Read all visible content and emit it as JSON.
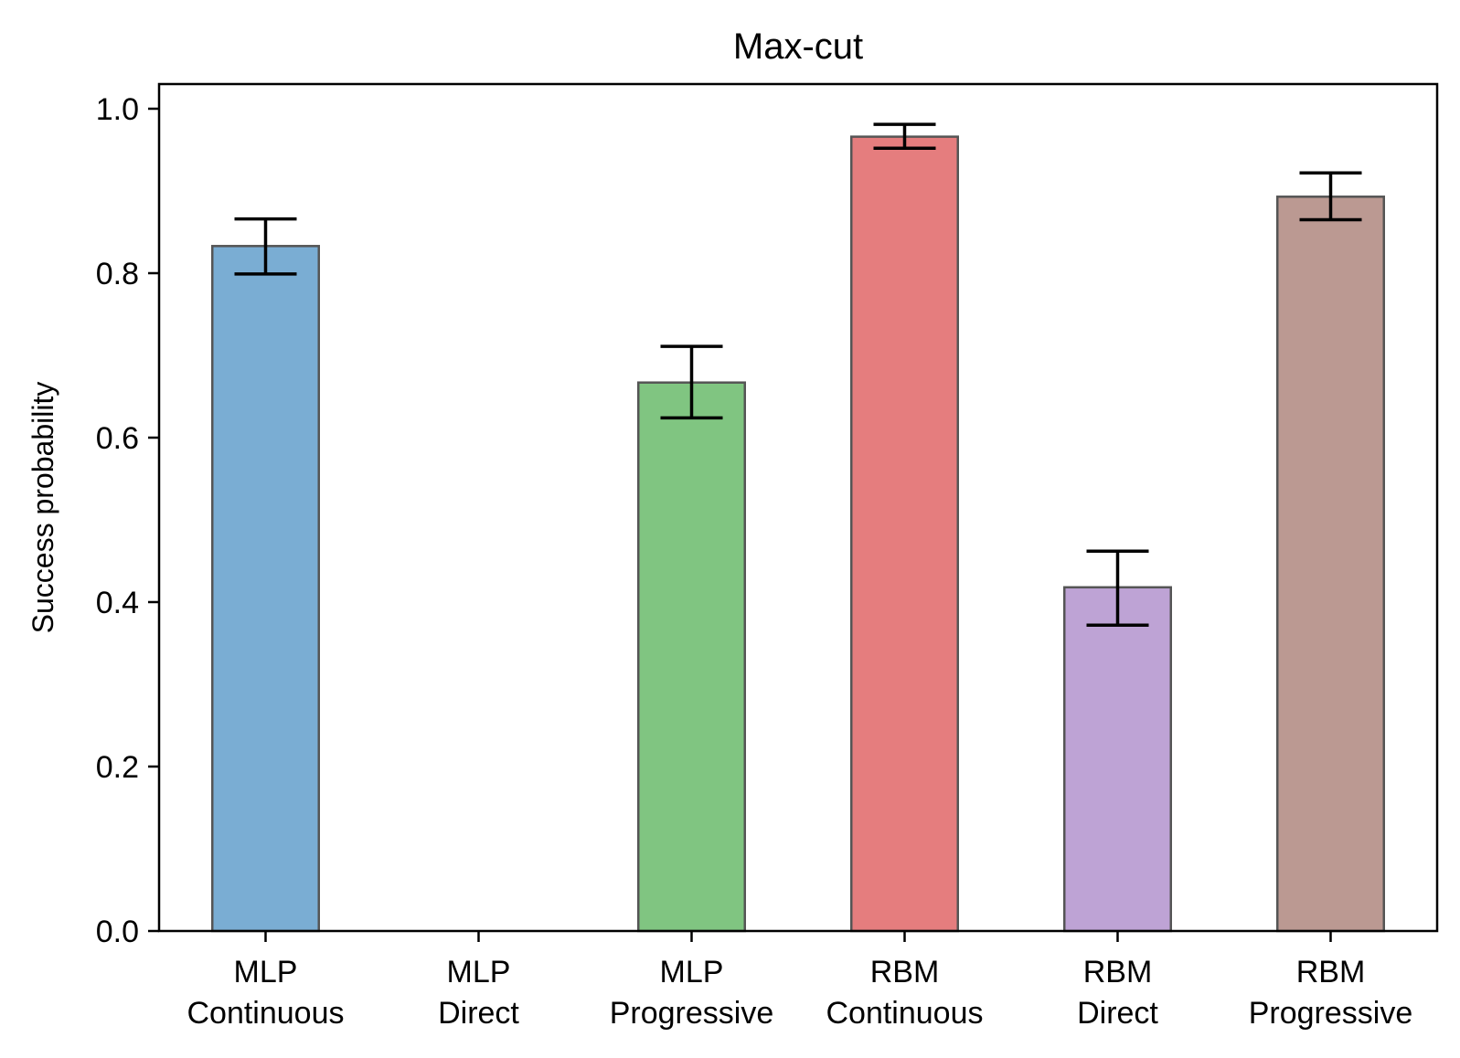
{
  "chart_data": {
    "type": "bar",
    "title": "Max-cut",
    "xlabel": "",
    "ylabel": "Success probability",
    "ylim": [
      0,
      1.03
    ],
    "yticks": [
      0.0,
      0.2,
      0.4,
      0.6,
      0.8,
      1.0
    ],
    "ytick_labels": [
      "0.0",
      "0.2",
      "0.4",
      "0.6",
      "0.8",
      "1.0"
    ],
    "grid": false,
    "categories": [
      [
        "MLP",
        "Continuous"
      ],
      [
        "MLP",
        "Direct"
      ],
      [
        "MLP",
        "Progressive"
      ],
      [
        "RBM",
        "Continuous"
      ],
      [
        "RBM",
        "Direct"
      ],
      [
        "RBM",
        "Progressive"
      ]
    ],
    "values": [
      0.833,
      0.0,
      0.667,
      0.966,
      0.418,
      0.893
    ],
    "error_low": [
      0.799,
      null,
      0.624,
      0.952,
      0.372,
      0.865
    ],
    "error_high": [
      0.866,
      null,
      0.711,
      0.981,
      0.462,
      0.922
    ],
    "colors": [
      "#7aadd3",
      "#7aadd3",
      "#80c581",
      "#e57d7e",
      "#bea3d5",
      "#bb9992"
    ]
  }
}
